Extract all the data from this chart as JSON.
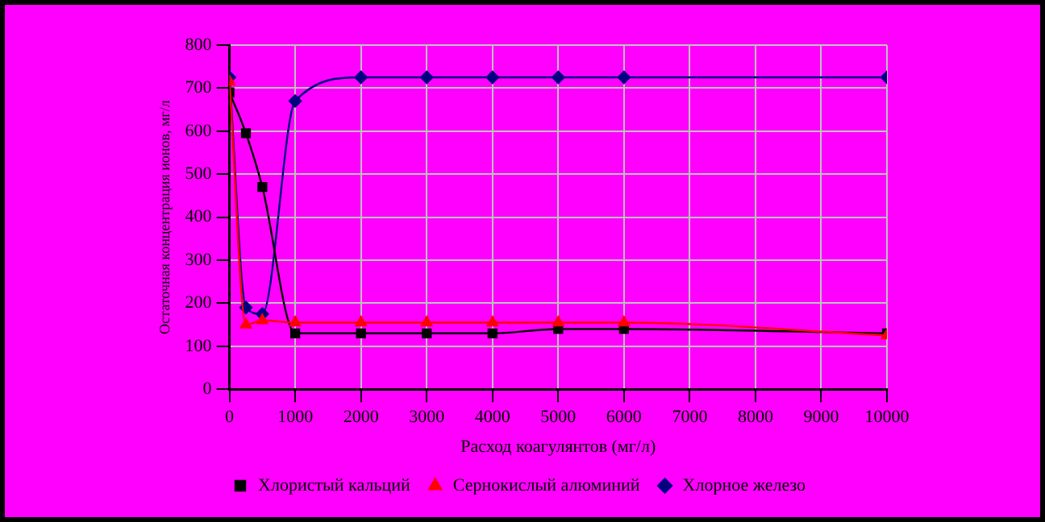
{
  "chart_data": {
    "type": "line",
    "xlabel": "Расход коагулянтов (мг/л)",
    "ylabel": "Остаточная концентрация ионов, мг/л",
    "x": [
      0,
      250,
      500,
      1000,
      2000,
      3000,
      4000,
      5000,
      6000,
      10000
    ],
    "xlim": [
      0,
      10000
    ],
    "xticks": [
      0,
      1000,
      2000,
      3000,
      4000,
      5000,
      6000,
      7000,
      8000,
      9000,
      10000
    ],
    "ylim": [
      0,
      800
    ],
    "yticks": [
      0,
      100,
      200,
      300,
      400,
      500,
      600,
      700,
      800
    ],
    "grid": true,
    "legend": "bottom",
    "series": [
      {
        "name": "Хлористый кальций",
        "color": "#000000",
        "marker": "square",
        "values": [
          690,
          595,
          470,
          130,
          130,
          130,
          130,
          140,
          140,
          130
        ]
      },
      {
        "name": "Сернокислый алюминий",
        "color": "#ff0000",
        "marker": "triangle",
        "values": [
          715,
          150,
          160,
          155,
          155,
          155,
          155,
          155,
          155,
          125
        ]
      },
      {
        "name": "Хлорное железо",
        "color": "#000080",
        "marker": "diamond",
        "values": [
          725,
          190,
          175,
          670,
          725,
          725,
          725,
          725,
          725,
          725
        ]
      }
    ]
  }
}
